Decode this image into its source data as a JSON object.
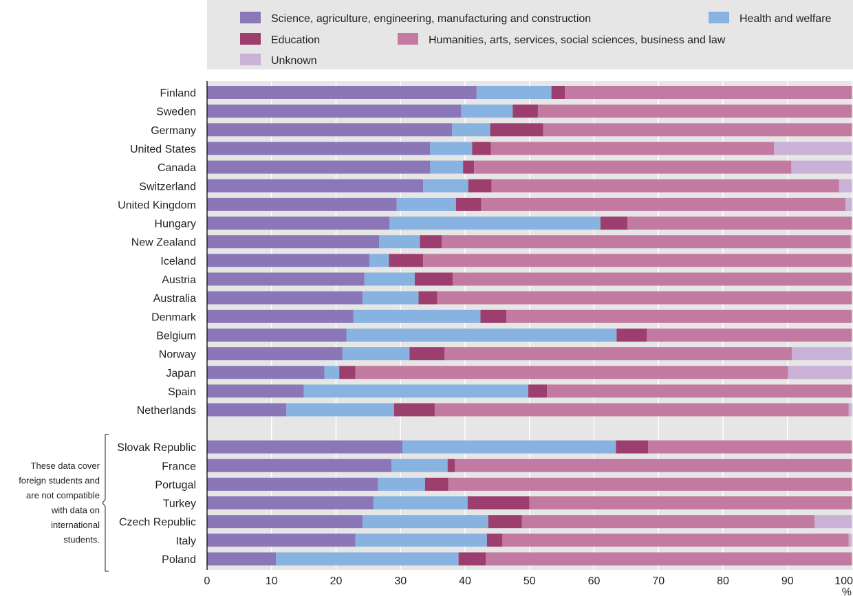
{
  "chart_data": {
    "type": "bar",
    "orientation": "horizontal",
    "stacked": true,
    "legend": [
      {
        "name": "Science, agriculture, engineering, manufacturing and construction",
        "color": "#8b77b7"
      },
      {
        "name": "Health and welfare",
        "color": "#88b3e0"
      },
      {
        "name": "Education",
        "color": "#9c3f6e"
      },
      {
        "name": "Humanities, arts, services, social sciences, business and law",
        "color": "#c37aa0"
      },
      {
        "name": "Unknown",
        "color": "#c9b1d8"
      }
    ],
    "legend_placement": "top",
    "groups": [
      {
        "note": "",
        "categories": [
          "Finland",
          "Sweden",
          "Germany",
          "United States",
          "Canada",
          "Switzerland",
          "United Kingdom",
          "Hungary",
          "New Zealand",
          "Iceland",
          "Austria",
          "Australia",
          "Denmark",
          "Belgium",
          "Norway",
          "Japan",
          "Spain",
          "Netherlands"
        ],
        "values": [
          [
            41.8,
            11.6,
            2.1,
            44.5,
            0
          ],
          [
            39.4,
            8.0,
            3.9,
            48.7,
            0
          ],
          [
            38.0,
            5.9,
            8.2,
            47.9,
            0
          ],
          [
            34.6,
            6.5,
            2.9,
            43.9,
            12.1
          ],
          [
            34.6,
            5.1,
            1.7,
            49.2,
            9.4
          ],
          [
            33.5,
            7.0,
            3.6,
            53.9,
            2.0
          ],
          [
            29.4,
            9.2,
            3.9,
            56.5,
            1.0
          ],
          [
            28.3,
            32.7,
            4.2,
            34.8,
            0
          ],
          [
            26.7,
            6.3,
            3.4,
            63.4,
            0.2
          ],
          [
            25.2,
            3.0,
            5.3,
            66.5,
            0
          ],
          [
            24.4,
            7.8,
            5.9,
            61.9,
            0
          ],
          [
            24.1,
            8.7,
            2.9,
            64.3,
            0
          ],
          [
            22.7,
            19.7,
            4.0,
            53.6,
            0
          ],
          [
            21.6,
            41.9,
            4.7,
            31.8,
            0
          ],
          [
            21.0,
            10.4,
            5.4,
            53.9,
            9.3
          ],
          [
            18.2,
            2.3,
            2.5,
            67.1,
            9.9
          ],
          [
            15.0,
            34.8,
            2.9,
            47.3,
            0
          ],
          [
            12.3,
            16.7,
            6.3,
            64.2,
            0.5
          ]
        ]
      },
      {
        "note": "These data cover foreign students and are not compatible with data on international students.",
        "categories": [
          "Slovak Republic",
          "France",
          "Portugal",
          "Turkey",
          "Czech Republic",
          "Italy",
          "Poland"
        ],
        "values": [
          [
            30.3,
            33.1,
            5.0,
            31.6,
            0
          ],
          [
            28.6,
            8.7,
            1.1,
            61.6,
            0
          ],
          [
            26.5,
            7.3,
            3.6,
            62.6,
            0
          ],
          [
            25.8,
            14.6,
            9.6,
            50.0,
            0
          ],
          [
            24.1,
            19.5,
            5.2,
            45.4,
            5.8
          ],
          [
            23.0,
            20.4,
            2.4,
            53.7,
            0.5
          ],
          [
            10.7,
            28.3,
            4.2,
            56.8,
            0
          ]
        ]
      }
    ],
    "xlim": [
      0,
      100
    ],
    "xticks": [
      "0",
      "10",
      "20",
      "30",
      "40",
      "50",
      "60",
      "70",
      "80",
      "90",
      "100"
    ],
    "xunit": "%",
    "grid": true
  }
}
